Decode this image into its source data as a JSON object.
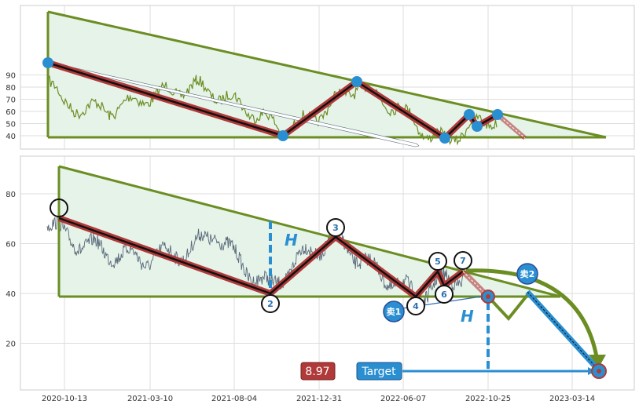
{
  "chart_data": [
    {
      "type": "line",
      "title": "",
      "ylim": [
        33,
        96
      ],
      "y_ticks": [
        40,
        50,
        60,
        70,
        80,
        90
      ],
      "grid": true,
      "colors": {
        "price": "#6b8e23",
        "triangle": "#6b8e23",
        "fill": "#e6f3e9",
        "zigzag": "#b03a3a",
        "dot": "#2a8fd1"
      },
      "triangle": {
        "upper": [
          [
            0.0,
            91
          ],
          [
            1.0,
            39
          ]
        ],
        "lower": [
          [
            0.0,
            39
          ],
          [
            1.0,
            39
          ]
        ]
      },
      "pivots": [
        {
          "x": 0.0,
          "y": 70
        },
        {
          "x": 0.41,
          "y": 40
        },
        {
          "x": 0.55,
          "y": 62
        },
        {
          "x": 0.69,
          "y": 39
        },
        {
          "x": 0.74,
          "y": 49
        },
        {
          "x": 0.76,
          "y": 44
        },
        {
          "x": 0.79,
          "y": 49
        }
      ],
      "projection": [
        [
          0.79,
          49
        ],
        [
          0.83,
          40
        ]
      ]
    },
    {
      "type": "line",
      "title": "",
      "x_ticks": [
        "2020-10-13",
        "2021-03-10",
        "2021-08-04",
        "2021-12-31",
        "2022-06-07",
        "2022-10-25",
        "2023-03-14"
      ],
      "ylim": [
        2,
        95
      ],
      "y_ticks": [
        20,
        40,
        60,
        80
      ],
      "grid": true,
      "colors": {
        "price": "#5a6a7a",
        "triangle": "#6b8e23",
        "fill": "#e6f3e9",
        "zigzag": "#b03a3a",
        "target": "#2a8fd1"
      },
      "triangle": {
        "upper": [
          [
            0.0,
            91
          ],
          [
            1.0,
            39
          ]
        ],
        "lower": [
          [
            0.0,
            39
          ],
          [
            1.0,
            39
          ]
        ]
      },
      "pivots": [
        {
          "label": "1",
          "x": 0.0,
          "y": 70
        },
        {
          "label": "2",
          "x": 0.41,
          "y": 40
        },
        {
          "label": "3",
          "x": 0.54,
          "y": 62
        },
        {
          "label": "4",
          "x": 0.69,
          "y": 40
        },
        {
          "label": "5",
          "x": 0.74,
          "y": 49
        },
        {
          "label": "6",
          "x": 0.76,
          "y": 43
        },
        {
          "label": "7",
          "x": 0.79,
          "y": 49
        }
      ],
      "sell_points": [
        {
          "label": "卖1"
        },
        {
          "label": "卖2"
        }
      ],
      "height_label": "H",
      "target_label": "Target",
      "target_value": "8.97"
    }
  ]
}
